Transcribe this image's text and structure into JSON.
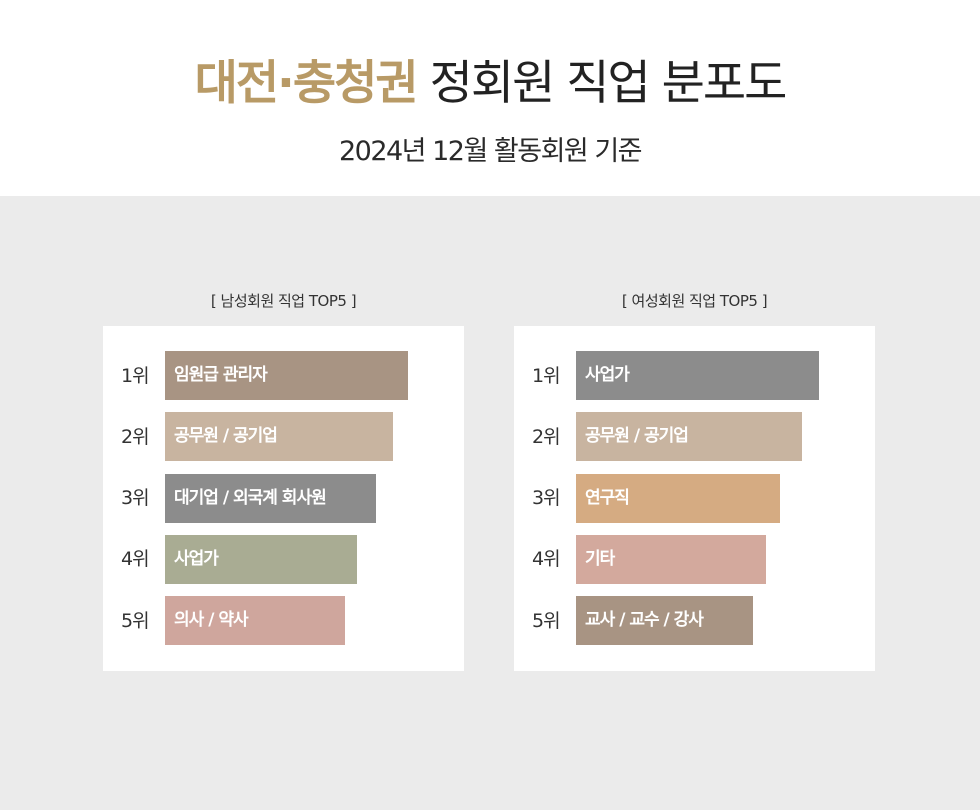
{
  "header": {
    "title_accent": "대전·충청권",
    "title_rest": "정회원 직업 분포도",
    "subtitle": "2024년 12월 활동회원 기준"
  },
  "chart_data": [
    {
      "type": "bar",
      "orientation": "horizontal",
      "title": "[ 남성회원 직업 TOP5 ]",
      "ranks": [
        "1위",
        "2위",
        "3위",
        "4위",
        "5위"
      ],
      "categories": [
        "임원급 관리자",
        "공무원 / 공기업",
        "대기업 / 외국계 회사원",
        "사업가",
        "의사 / 약사"
      ],
      "relative_values": [
        1.0,
        0.94,
        0.87,
        0.79,
        0.74
      ],
      "colors": [
        "#a89483",
        "#c8b4a0",
        "#8c8c8c",
        "#a9ac93",
        "#cfa69d"
      ]
    },
    {
      "type": "bar",
      "orientation": "horizontal",
      "title": "[ 여성회원 직업 TOP5 ]",
      "ranks": [
        "1위",
        "2위",
        "3위",
        "4위",
        "5위"
      ],
      "categories": [
        "사업가",
        "공무원 / 공기업",
        "연구직",
        "기타",
        "교사 / 교수 / 강사"
      ],
      "relative_values": [
        1.0,
        0.93,
        0.84,
        0.78,
        0.73
      ],
      "colors": [
        "#8c8c8c",
        "#c8b4a0",
        "#d5ab82",
        "#d3a99d",
        "#a89483"
      ]
    }
  ]
}
